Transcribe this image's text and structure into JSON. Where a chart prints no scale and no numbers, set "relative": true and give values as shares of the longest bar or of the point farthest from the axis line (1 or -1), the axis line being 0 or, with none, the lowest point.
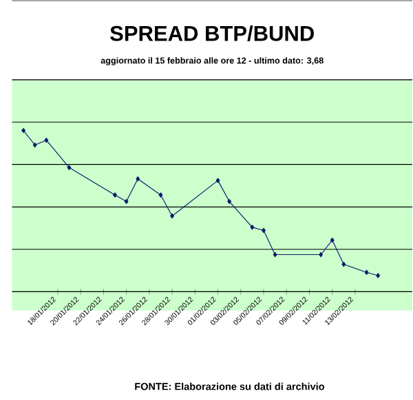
{
  "chart_data": {
    "type": "line",
    "title": "SPREAD BTP/BUND",
    "subtitle": "aggiornato il 15 febbraio alle ore 12 - ultimo dato: 3,68",
    "relative": true,
    "x": [
      "2012-01-15",
      "2012-01-16",
      "2012-01-17",
      "2012-01-19",
      "2012-01-23",
      "2012-01-24",
      "2012-01-25",
      "2012-01-27",
      "2012-01-28",
      "2012-02-01",
      "2012-02-02",
      "2012-02-04",
      "2012-02-05",
      "2012-02-06",
      "2012-02-10",
      "2012-02-11",
      "2012-02-12",
      "2012-02-14",
      "2012-02-15"
    ],
    "values": [
      1.0,
      0.91,
      0.94,
      0.77,
      0.6,
      0.56,
      0.7,
      0.6,
      0.47,
      0.69,
      0.56,
      0.4,
      0.38,
      0.23,
      0.23,
      0.32,
      0.17,
      0.12,
      0.1
    ],
    "color": "#0d1a6b",
    "marker": "diamond",
    "grid": "y",
    "xlim": [
      "2012-01-14",
      "2012-02-18"
    ],
    "xticks": [
      {
        "value": "2012-01-18",
        "label": "18/01/2012"
      },
      {
        "value": "2012-01-20",
        "label": "20/01/2012"
      },
      {
        "value": "2012-01-22",
        "label": "22/01/2012"
      },
      {
        "value": "2012-01-24",
        "label": "24/01/2012"
      },
      {
        "value": "2012-01-26",
        "label": "26/01/2012"
      },
      {
        "value": "2012-01-28",
        "label": "28/01/2012"
      },
      {
        "value": "2012-01-30",
        "label": "30/01/2012"
      },
      {
        "value": "2012-02-01",
        "label": "01/02/2012"
      },
      {
        "value": "2012-02-03",
        "label": "03/02/2012"
      },
      {
        "value": "2012-02-05",
        "label": "05/02/2012"
      },
      {
        "value": "2012-02-07",
        "label": "07/02/2012"
      },
      {
        "value": "2012-02-09",
        "label": "09/02/2012"
      },
      {
        "value": "2012-02-11",
        "label": "11/02/2012"
      },
      {
        "value": "2012-02-13",
        "label": "13/02/2012"
      }
    ],
    "annotations": [
      "FONTE: Elaborazione su dati di archivio"
    ]
  }
}
